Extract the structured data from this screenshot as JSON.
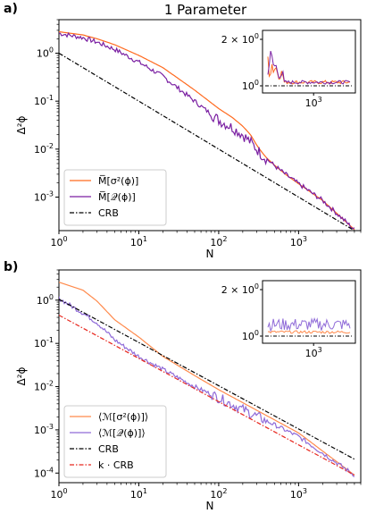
{
  "title": "1 Parameter",
  "colors": {
    "orange": "#ff6a1f",
    "purple": "#7a1fa2",
    "lavender": "#8f6ad8",
    "lightorange": "#ff8a4c",
    "black": "#000000",
    "red": "#e8281f"
  },
  "chart_data": [
    {
      "panel": "a)",
      "type": "line",
      "xscale": "log",
      "yscale": "log",
      "xlim": [
        1,
        6000
      ],
      "ylim": [
        0.0002,
        5
      ],
      "xlabel": "N",
      "ylabel": "Δ²ϕ",
      "xticks": [
        {
          "m": "10",
          "e": "0"
        },
        {
          "m": "10",
          "e": "1"
        },
        {
          "m": "10",
          "e": "2"
        },
        {
          "m": "10",
          "e": "3"
        }
      ],
      "yticks": [
        {
          "m": "10",
          "e": "0"
        },
        {
          "m": "10",
          "e": "-1"
        },
        {
          "m": "10",
          "e": "-2"
        },
        {
          "m": "10",
          "e": "-3"
        }
      ],
      "legend_position": "lower-left",
      "series": [
        {
          "name": "M̅[σ²(ϕ)]",
          "color": "orange",
          "style": "solid",
          "x": [
            1,
            2,
            3,
            5,
            10,
            20,
            50,
            100,
            150,
            200,
            250,
            300,
            350,
            400,
            500,
            700,
            1000,
            2000,
            5000
          ],
          "y": [
            2.8,
            2.4,
            2.0,
            1.5,
            0.9,
            0.5,
            0.17,
            0.07,
            0.045,
            0.03,
            0.02,
            0.012,
            0.0085,
            0.0065,
            0.0046,
            0.0029,
            0.0019,
            0.00085,
            0.00021
          ]
        },
        {
          "name": "M̅[𝒬(ϕ)]",
          "color": "purple",
          "style": "solid",
          "noisy": true,
          "x": [
            1,
            2,
            3,
            5,
            10,
            20,
            50,
            100,
            150,
            200,
            250,
            300,
            350,
            400,
            500,
            700,
            1000,
            2000,
            5000
          ],
          "y": [
            2.6,
            2.1,
            1.7,
            1.2,
            0.65,
            0.33,
            0.1,
            0.04,
            0.028,
            0.02,
            0.014,
            0.01,
            0.0075,
            0.0062,
            0.0045,
            0.0029,
            0.0019,
            0.00085,
            0.00021
          ]
        },
        {
          "name": "CRB",
          "color": "black",
          "style": "dashdot",
          "x": [
            1,
            5000
          ],
          "y": [
            1.0,
            0.0002
          ]
        }
      ],
      "inset": {
        "ytick": {
          "m": "2 × 10",
          "e": "0"
        },
        "ytick2": {
          "m": "10",
          "e": "0"
        },
        "xtick": {
          "m": "10",
          "e": "3"
        }
      }
    },
    {
      "panel": "b)",
      "type": "line",
      "xscale": "log",
      "yscale": "log",
      "xlim": [
        1,
        6000
      ],
      "ylim": [
        6e-05,
        5
      ],
      "xlabel": "N",
      "ylabel": "Δ²ϕ",
      "xticks": [
        {
          "m": "10",
          "e": "0"
        },
        {
          "m": "10",
          "e": "1"
        },
        {
          "m": "10",
          "e": "2"
        },
        {
          "m": "10",
          "e": "3"
        }
      ],
      "yticks": [
        {
          "m": "10",
          "e": "0"
        },
        {
          "m": "10",
          "e": "-1"
        },
        {
          "m": "10",
          "e": "-2"
        },
        {
          "m": "10",
          "e": "-3"
        },
        {
          "m": "10",
          "e": "-4"
        }
      ],
      "legend_position": "lower-left",
      "series": [
        {
          "name": "⟨ℳ[σ²(ϕ)]⟩",
          "color": "lightorange",
          "style": "solid",
          "x": [
            1,
            2,
            3,
            5,
            10,
            20,
            50,
            100,
            1000,
            5000
          ],
          "y": [
            2.6,
            1.7,
            0.95,
            0.35,
            0.14,
            0.05,
            0.018,
            0.0085,
            0.00085,
            9e-05
          ]
        },
        {
          "name": "⟨ℳ[𝒬(ϕ)]⟩",
          "color": "lavender",
          "style": "solid",
          "noisy": true,
          "x": [
            1,
            2,
            3,
            5,
            10,
            20,
            50,
            100,
            1000,
            5000
          ],
          "y": [
            1.1,
            0.5,
            0.3,
            0.12,
            0.05,
            0.025,
            0.01,
            0.0055,
            0.0007,
            9e-05
          ]
        },
        {
          "name": "CRB",
          "color": "black",
          "style": "dashdot",
          "x": [
            1,
            5000
          ],
          "y": [
            1.05,
            0.00021
          ]
        },
        {
          "name": "k · CRB",
          "color": "red",
          "style": "dashdot",
          "x": [
            1,
            5000
          ],
          "y": [
            0.45,
            9e-05
          ]
        }
      ],
      "inset": {
        "ytick": {
          "m": "2 × 10",
          "e": "0"
        },
        "ytick2": {
          "m": "10",
          "e": "0"
        },
        "xtick": {
          "m": "10",
          "e": "3"
        }
      }
    }
  ]
}
